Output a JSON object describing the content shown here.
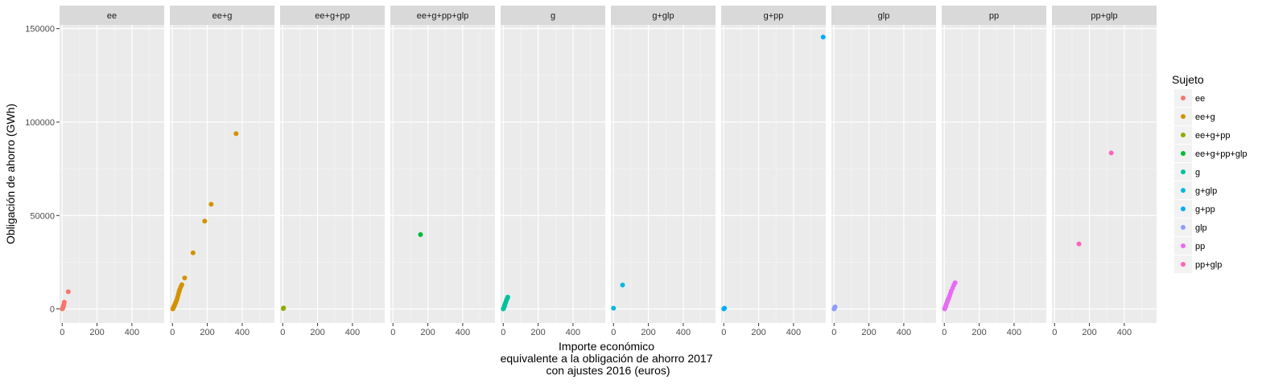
{
  "chart_data": {
    "type": "scatter",
    "xlabel": [
      "Importe económico",
      "equivalente a la obligación de ahorro 2017",
      "con ajustes 2016 (euros)"
    ],
    "ylabel": "Obligación de ahorro (GWh)",
    "xlim": [
      -15,
      585
    ],
    "ylim": [
      -7500,
      152000
    ],
    "x_ticks": [
      0,
      200,
      400
    ],
    "x_tick_labels": [
      "0",
      "200",
      "400"
    ],
    "y_ticks": [
      0,
      50000,
      100000,
      150000
    ],
    "y_tick_labels": [
      "0",
      "50000",
      "100000",
      "150000"
    ],
    "grid": true,
    "legend": {
      "title": "Sujeto",
      "placement": "right"
    },
    "facets": [
      {
        "name": "ee",
        "color": "#F8766D",
        "points": [
          [
            0,
            0
          ],
          [
            2,
            200
          ],
          [
            4,
            500
          ],
          [
            5,
            900
          ],
          [
            7,
            1300
          ],
          [
            8,
            1800
          ],
          [
            10,
            2400
          ],
          [
            12,
            3600
          ],
          [
            35,
            9200
          ]
        ]
      },
      {
        "name": "ee+g",
        "color": "#D39200",
        "points": [
          [
            2,
            0
          ],
          [
            4,
            300
          ],
          [
            6,
            700
          ],
          [
            8,
            1100
          ],
          [
            10,
            1500
          ],
          [
            12,
            2000
          ],
          [
            15,
            2600
          ],
          [
            18,
            3300
          ],
          [
            22,
            4100
          ],
          [
            26,
            5200
          ],
          [
            30,
            6500
          ],
          [
            34,
            7800
          ],
          [
            38,
            9200
          ],
          [
            42,
            10400
          ],
          [
            48,
            11800
          ],
          [
            54,
            13000
          ],
          [
            70,
            16600
          ],
          [
            118,
            30000
          ],
          [
            185,
            47000
          ],
          [
            222,
            56000
          ],
          [
            365,
            93800
          ]
        ]
      },
      {
        "name": "ee+g+pp",
        "color": "#93AA00",
        "points": [
          [
            3,
            200
          ],
          [
            5,
            500
          ]
        ]
      },
      {
        "name": "ee+g+pp+glp",
        "color": "#00BA38",
        "points": [
          [
            158,
            39800
          ]
        ]
      },
      {
        "name": "g",
        "color": "#00C19F",
        "points": [
          [
            0,
            0
          ],
          [
            2,
            300
          ],
          [
            4,
            700
          ],
          [
            6,
            1200
          ],
          [
            8,
            1800
          ],
          [
            10,
            2500
          ],
          [
            14,
            3500
          ],
          [
            18,
            4600
          ],
          [
            22,
            5400
          ],
          [
            26,
            6300
          ]
        ]
      },
      {
        "name": "g+glp",
        "color": "#00B9E3",
        "points": [
          [
            0,
            400
          ],
          [
            52,
            12800
          ]
        ]
      },
      {
        "name": "g+pp",
        "color": "#00ADFA",
        "points": [
          [
            0,
            0
          ],
          [
            2,
            200
          ],
          [
            4,
            400
          ],
          [
            570,
            145500
          ]
        ]
      },
      {
        "name": "glp",
        "color": "#919CFF",
        "points": [
          [
            0,
            0
          ],
          [
            2,
            300
          ],
          [
            4,
            700
          ],
          [
            6,
            1100
          ]
        ]
      },
      {
        "name": "pp",
        "color": "#E76BF3",
        "points": [
          [
            2,
            0
          ],
          [
            4,
            400
          ],
          [
            6,
            900
          ],
          [
            8,
            1400
          ],
          [
            10,
            2000
          ],
          [
            12,
            2600
          ],
          [
            15,
            3300
          ],
          [
            18,
            4000
          ],
          [
            21,
            4800
          ],
          [
            25,
            5700
          ],
          [
            30,
            6900
          ],
          [
            35,
            8200
          ],
          [
            40,
            9600
          ],
          [
            48,
            11200
          ],
          [
            55,
            12800
          ],
          [
            62,
            14000
          ]
        ]
      },
      {
        "name": "pp+glp",
        "color": "#FF62BC",
        "points": [
          [
            140,
            34800
          ],
          [
            325,
            83500
          ]
        ]
      }
    ]
  }
}
